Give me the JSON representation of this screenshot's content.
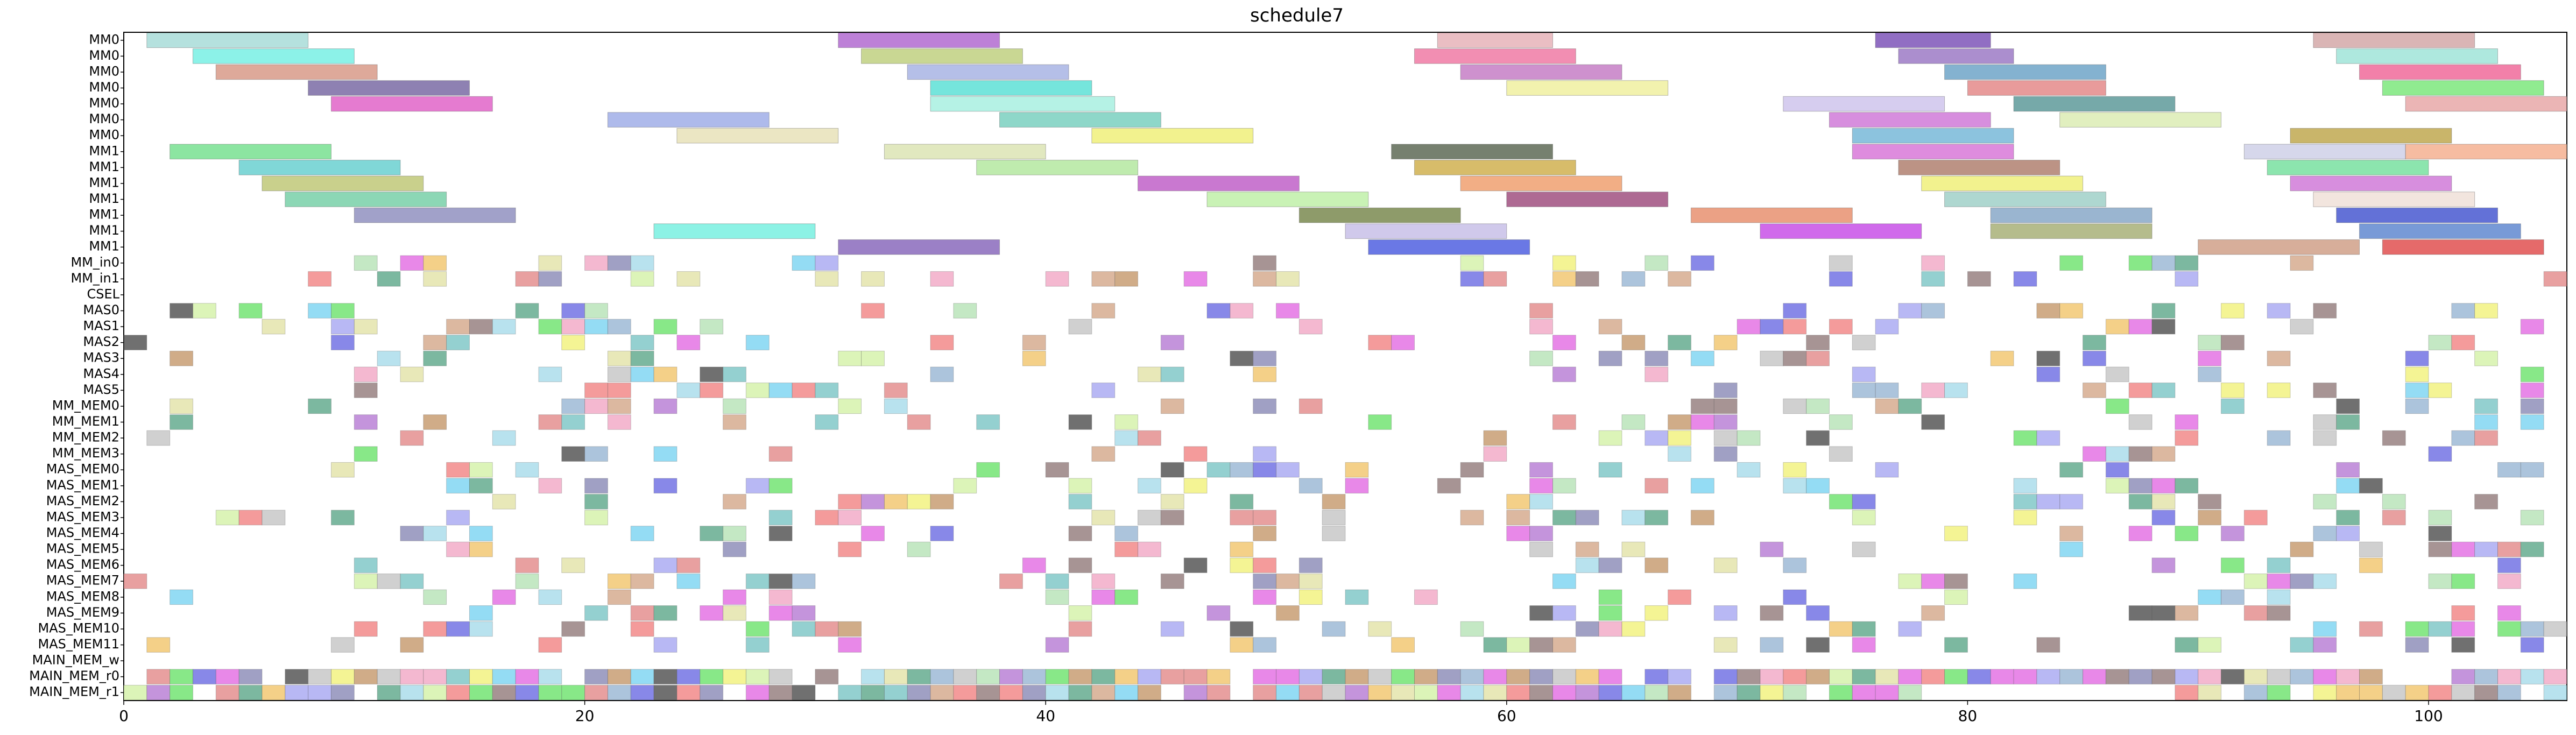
{
  "chart_data": {
    "type": "gantt",
    "title": "schedule7",
    "xlabel": "",
    "ylabel": "",
    "xlim": [
      0,
      106
    ],
    "xticks": [
      0,
      20,
      40,
      60,
      80,
      100
    ],
    "grid": false,
    "legend": "none",
    "rows": [
      "MM0",
      "MM0",
      "MM0",
      "MM0",
      "MM0",
      "MM0",
      "MM0",
      "MM1",
      "MM1",
      "MM1",
      "MM1",
      "MM1",
      "MM1",
      "MM1",
      "MM_in0",
      "MM_in1",
      "CSEL",
      "MAS0",
      "MAS1",
      "MAS2",
      "MAS3",
      "MAS4",
      "MAS5",
      "MM_MEM0",
      "MM_MEM1",
      "MM_MEM2",
      "MM_MEM3",
      "MAS_MEM0",
      "MAS_MEM1",
      "MAS_MEM2",
      "MAS_MEM3",
      "MAS_MEM4",
      "MAS_MEM5",
      "MAS_MEM6",
      "MAS_MEM7",
      "MAS_MEM8",
      "MAS_MEM9",
      "MAS_MEM10",
      "MAS_MEM11",
      "MAIN_MEM_w",
      "MAIN_MEM_r0",
      "MAIN_MEM_r1"
    ],
    "tasks": [
      {
        "row": 0,
        "start": 1,
        "end": 8,
        "color": "#a8dcd8"
      },
      {
        "row": 0,
        "start": 31,
        "end": 38,
        "color": "#b26ad0"
      },
      {
        "row": 0,
        "start": 57,
        "end": 62,
        "color": "#e6b3b8"
      },
      {
        "row": 0,
        "start": 76,
        "end": 81,
        "color": "#7e55b8"
      },
      {
        "row": 0,
        "start": 95,
        "end": 102,
        "color": "#d4a8a8"
      },
      {
        "row": 1,
        "start": 3,
        "end": 10,
        "color": "#78f0e4"
      },
      {
        "row": 1,
        "start": 32,
        "end": 39,
        "color": "#c0d080"
      },
      {
        "row": 1,
        "start": 56,
        "end": 63,
        "color": "#f07aa4"
      },
      {
        "row": 1,
        "start": 77,
        "end": 82,
        "color": "#9c7ac6"
      },
      {
        "row": 1,
        "start": 96,
        "end": 103,
        "color": "#a0e4d8"
      },
      {
        "row": 2,
        "start": 4,
        "end": 11,
        "color": "#d89a88"
      },
      {
        "row": 2,
        "start": 34,
        "end": 41,
        "color": "#a8b4e4"
      },
      {
        "row": 2,
        "start": 58,
        "end": 65,
        "color": "#c67ec6"
      },
      {
        "row": 2,
        "start": 79,
        "end": 86,
        "color": "#6fa4c8"
      },
      {
        "row": 2,
        "start": 97,
        "end": 104,
        "color": "#f06a9a"
      },
      {
        "row": 3,
        "start": 8,
        "end": 15,
        "color": "#7a6ba4"
      },
      {
        "row": 3,
        "start": 35,
        "end": 42,
        "color": "#5de0d6"
      },
      {
        "row": 3,
        "start": 60,
        "end": 67,
        "color": "#f0f0a0"
      },
      {
        "row": 3,
        "start": 80,
        "end": 86,
        "color": "#e48a8a"
      },
      {
        "row": 3,
        "start": 98,
        "end": 105,
        "color": "#7ce87c"
      },
      {
        "row": 4,
        "start": 9,
        "end": 16,
        "color": "#e064c8"
      },
      {
        "row": 4,
        "start": 35,
        "end": 43,
        "color": "#a8f0e0"
      },
      {
        "row": 4,
        "start": 72,
        "end": 79,
        "color": "#cfc4ec"
      },
      {
        "row": 4,
        "start": 82,
        "end": 89,
        "color": "#5e9a9a"
      },
      {
        "row": 4,
        "start": 99,
        "end": 106,
        "color": "#e8a8a8"
      },
      {
        "row": 5,
        "start": 21,
        "end": 28,
        "color": "#a0aee8"
      },
      {
        "row": 5,
        "start": 38,
        "end": 45,
        "color": "#7ad0c0"
      },
      {
        "row": 5,
        "start": 74,
        "end": 81,
        "color": "#d07ad8"
      },
      {
        "row": 5,
        "start": 84,
        "end": 91,
        "color": "#dcecb4"
      },
      {
        "row": 6,
        "start": 24,
        "end": 31,
        "color": "#e8e2b8"
      },
      {
        "row": 6,
        "start": 42,
        "end": 49,
        "color": "#f0f07a"
      },
      {
        "row": 6,
        "start": 75,
        "end": 82,
        "color": "#78b8d8"
      },
      {
        "row": 6,
        "start": 94,
        "end": 101,
        "color": "#c0a850"
      },
      {
        "row": 7,
        "start": 2,
        "end": 9,
        "color": "#78e090"
      },
      {
        "row": 7,
        "start": 33,
        "end": 40,
        "color": "#dce4b4"
      },
      {
        "row": 7,
        "start": 55,
        "end": 62,
        "color": "#5e6a56"
      },
      {
        "row": 7,
        "start": 75,
        "end": 82,
        "color": "#d878d8"
      },
      {
        "row": 7,
        "start": 92,
        "end": 99,
        "color": "#cfd0e8"
      },
      {
        "row": 7,
        "start": 99,
        "end": 106,
        "color": "#f4b090"
      },
      {
        "row": 8,
        "start": 5,
        "end": 12,
        "color": "#6ad0d0"
      },
      {
        "row": 8,
        "start": 37,
        "end": 44,
        "color": "#b4e8a0"
      },
      {
        "row": 8,
        "start": 56,
        "end": 63,
        "color": "#d0b050"
      },
      {
        "row": 8,
        "start": 77,
        "end": 84,
        "color": "#b08070"
      },
      {
        "row": 8,
        "start": 93,
        "end": 100,
        "color": "#78e0a0"
      },
      {
        "row": 9,
        "start": 6,
        "end": 13,
        "color": "#c0c878"
      },
      {
        "row": 9,
        "start": 44,
        "end": 51,
        "color": "#c060c8"
      },
      {
        "row": 9,
        "start": 58,
        "end": 65,
        "color": "#f0a070"
      },
      {
        "row": 9,
        "start": 78,
        "end": 85,
        "color": "#f0f07a"
      },
      {
        "row": 9,
        "start": 94,
        "end": 101,
        "color": "#d07ad8"
      },
      {
        "row": 10,
        "start": 7,
        "end": 14,
        "color": "#78d0a8"
      },
      {
        "row": 10,
        "start": 47,
        "end": 54,
        "color": "#c0f0a8"
      },
      {
        "row": 10,
        "start": 60,
        "end": 67,
        "color": "#a05080"
      },
      {
        "row": 10,
        "start": 79,
        "end": 86,
        "color": "#a0d0c8"
      },
      {
        "row": 10,
        "start": 95,
        "end": 102,
        "color": "#f0e0d8"
      },
      {
        "row": 11,
        "start": 10,
        "end": 17,
        "color": "#9090c0"
      },
      {
        "row": 11,
        "start": 51,
        "end": 58,
        "color": "#7a8a50"
      },
      {
        "row": 11,
        "start": 68,
        "end": 75,
        "color": "#e89070"
      },
      {
        "row": 11,
        "start": 81,
        "end": 88,
        "color": "#88a8c8"
      },
      {
        "row": 11,
        "start": 96,
        "end": 103,
        "color": "#4858d0"
      },
      {
        "row": 12,
        "start": 23,
        "end": 30,
        "color": "#78f0e0"
      },
      {
        "row": 12,
        "start": 53,
        "end": 60,
        "color": "#c8c0e8"
      },
      {
        "row": 12,
        "start": 71,
        "end": 78,
        "color": "#c850e8"
      },
      {
        "row": 12,
        "start": 81,
        "end": 88,
        "color": "#a8b078"
      },
      {
        "row": 12,
        "start": 97,
        "end": 104,
        "color": "#6088d0"
      },
      {
        "row": 13,
        "start": 31,
        "end": 38,
        "color": "#8a6abc"
      },
      {
        "row": 13,
        "start": 54,
        "end": 61,
        "color": "#5060e0"
      },
      {
        "row": 13,
        "start": 90,
        "end": 97,
        "color": "#d0a088"
      },
      {
        "row": 13,
        "start": 98,
        "end": 105,
        "color": "#e05050"
      }
    ],
    "small_blocks": {
      "count_note": "",
      "palette": [
        "#a0d8e8",
        "#f0c060",
        "#8a7070",
        "#f07a7a",
        "#b0e0b0",
        "#d0a080",
        "#6060e0",
        "#c0c0c0",
        "#70d0f0",
        "#e060e0",
        "#60e060",
        "#f0f070",
        "#b070d0",
        "#50a080",
        "#e0e0a0",
        "#a0a0f0",
        "#e08080",
        "#70c0c0",
        "#c09060",
        "#8080b0",
        "#d0f0a0",
        "#f0a0c0",
        "#404040",
        "#90b0d0"
      ]
    }
  }
}
